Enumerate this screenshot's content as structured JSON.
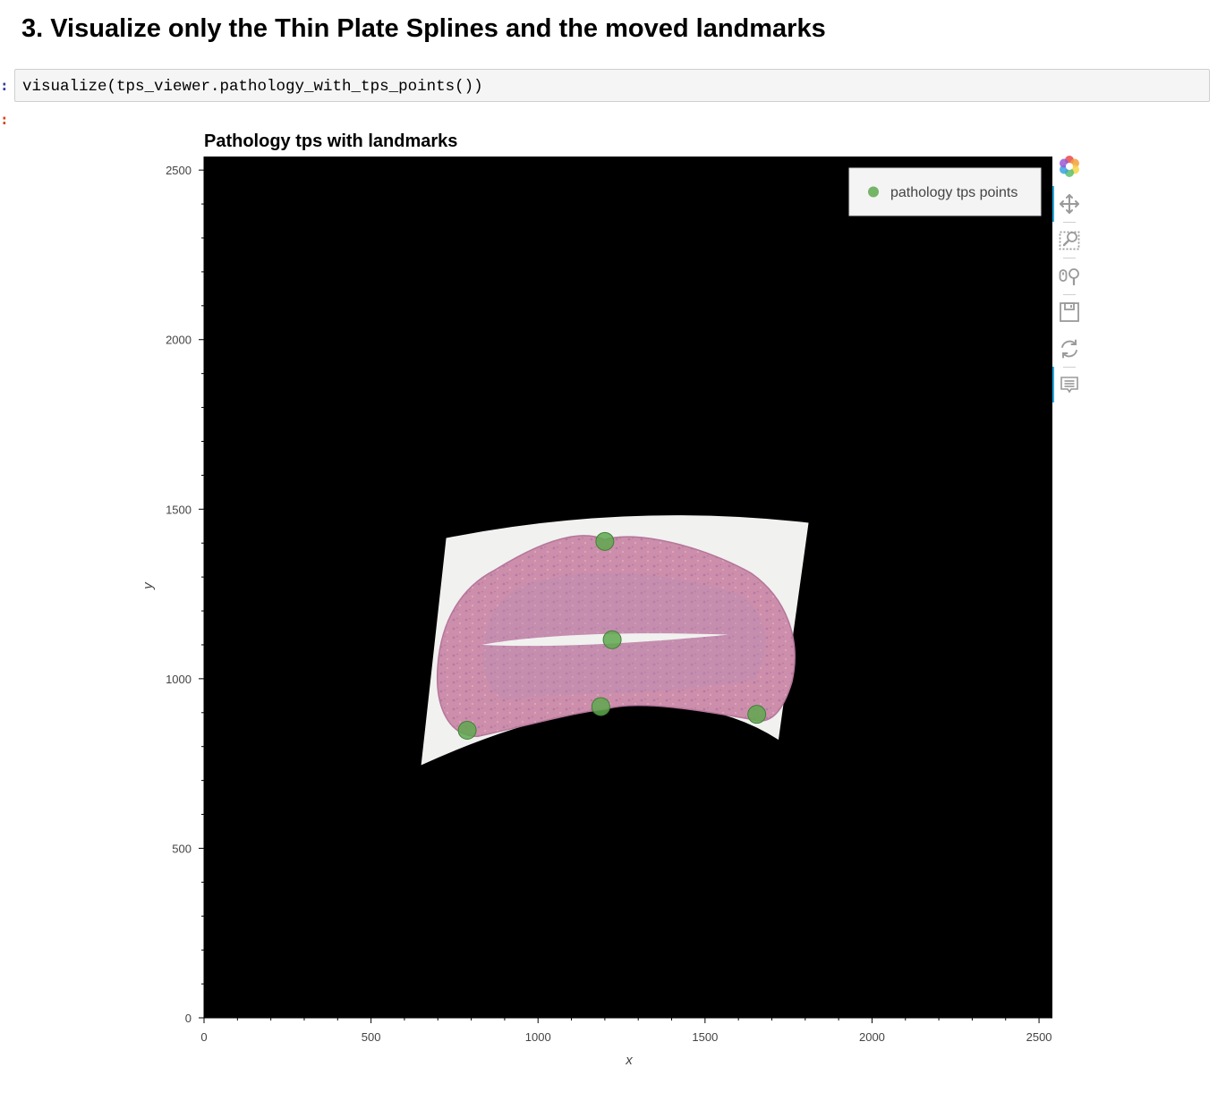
{
  "notebook": {
    "heading": "3. Visualize only the Thin Plate Splines and the moved landmarks",
    "input_prompt": ":",
    "output_prompt": ":",
    "code": "visualize(tps_viewer.pathology_with_tps_points())"
  },
  "toolbar": {
    "items": [
      {
        "name": "bokeh-logo-icon",
        "active": false
      },
      {
        "name": "pan-icon",
        "active": true
      },
      {
        "name": "box-zoom-icon",
        "active": false
      },
      {
        "name": "wheel-zoom-icon",
        "active": false
      },
      {
        "name": "save-icon",
        "active": false
      },
      {
        "name": "reset-icon",
        "active": false
      },
      {
        "name": "hover-icon",
        "active": true
      }
    ]
  },
  "chart_data": {
    "type": "scatter",
    "title": "Pathology tps with landmarks",
    "xlabel": "x",
    "ylabel": "y",
    "xlim": [
      0,
      2540
    ],
    "ylim": [
      0,
      2540
    ],
    "xticks": [
      0,
      500,
      1000,
      1500,
      2000,
      2500
    ],
    "yticks": [
      0,
      500,
      1000,
      1500,
      2000,
      2500
    ],
    "background_color": "#000000",
    "legend_position": "top-right",
    "image_layer": {
      "description": "warped H&E tissue section (thin plate spline)",
      "outline_corners": [
        [
          725,
          1415
        ],
        [
          1810,
          1460
        ],
        [
          1720,
          820
        ],
        [
          650,
          745
        ]
      ],
      "frame_color": "#f1f1ef",
      "tissue_color": "#c98aa9"
    },
    "series": [
      {
        "name": "pathology tps points",
        "color": "#5fa84f",
        "opacity": 0.85,
        "x": [
          1200,
          1222,
          1188,
          788,
          1655
        ],
        "y": [
          1405,
          1115,
          918,
          848,
          895
        ]
      }
    ]
  }
}
